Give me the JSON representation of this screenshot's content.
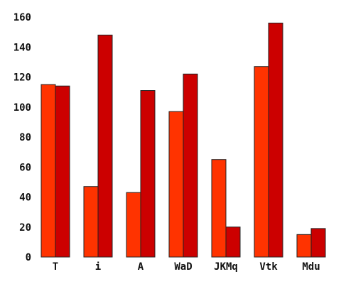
{
  "chart_data": {
    "type": "bar",
    "categories": [
      "T",
      "i",
      "A",
      "WaD",
      "JKMq",
      "Vtk",
      "Mdu"
    ],
    "series": [
      {
        "values": [
          115,
          47,
          43,
          97,
          65,
          127,
          15
        ],
        "color": "#ff3300"
      },
      {
        "values": [
          114,
          148,
          111,
          122,
          20,
          156,
          19
        ],
        "color": "#cc0000"
      }
    ],
    "yticks": [
      0,
      20,
      40,
      60,
      80,
      100,
      120,
      140,
      160
    ],
    "ylim": [
      0,
      160
    ],
    "grid": false,
    "legend": "none"
  }
}
